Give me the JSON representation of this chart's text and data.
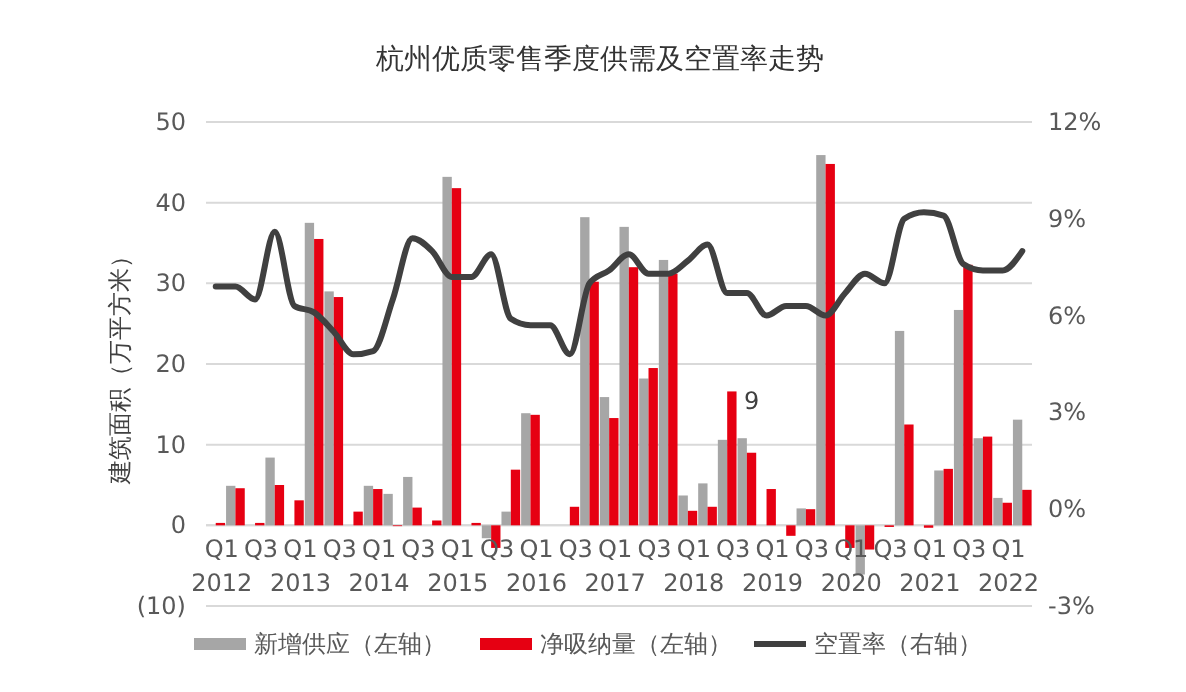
{
  "chart_data": {
    "type": "bar",
    "title": "杭州优质零售季度供需及空置率走势",
    "ylabel": "建筑面积（万平方米）",
    "categories": [
      "Q1\n2012",
      null,
      "Q3",
      null,
      "Q1\n2013",
      null,
      "Q3",
      null,
      "Q1\n2014",
      null,
      "Q3",
      null,
      "Q1\n2015",
      null,
      "Q3",
      null,
      "Q1\n2016",
      null,
      "Q3",
      null,
      "Q1\n2017",
      null,
      "Q3",
      null,
      "Q1\n2018",
      null,
      "Q3",
      null,
      "Q1\n2019",
      null,
      "Q3",
      null,
      "Q1\n2020",
      null,
      "Q3",
      null,
      "Q1\n2021",
      null,
      "Q3",
      null,
      "Q1\n2022",
      null
    ],
    "series": [
      {
        "name": "新增供应（左轴）",
        "color": "#a6a6a6",
        "values": [
          0,
          4.9,
          0,
          8.4,
          0,
          37.5,
          29,
          0,
          4.9,
          3.9,
          6,
          0,
          43.2,
          0,
          -1.6,
          1.7,
          13.9,
          0,
          0,
          38.2,
          15.9,
          37,
          18.2,
          32.9,
          3.7,
          5.2,
          10.6,
          10.8,
          null,
          0,
          2.1,
          45.9,
          0,
          -6.1,
          0,
          24.1,
          0,
          6.8,
          26.7,
          10.8,
          3.4,
          13.1
        ]
      },
      {
        "name": "净吸纳量（左轴）",
        "color": "#e60012",
        "values": [
          0.3,
          4.6,
          0.3,
          5,
          3.1,
          35.5,
          28.3,
          1.7,
          4.5,
          -0.1,
          2.2,
          0.6,
          41.8,
          0.3,
          -2.8,
          6.9,
          13.7,
          0,
          2.3,
          30.2,
          13.3,
          32,
          19.5,
          31.2,
          1.8,
          2.3,
          16.6,
          9,
          4.5,
          -1.3,
          2,
          44.8,
          -2.8,
          -3,
          -0.2,
          12.5,
          -0.3,
          7,
          32.3,
          11,
          2.8,
          4.4
        ],
        "value_labels": [
          null,
          null,
          null,
          null,
          null,
          null,
          null,
          null,
          null,
          null,
          null,
          null,
          null,
          null,
          null,
          null,
          null,
          null,
          null,
          null,
          null,
          null,
          null,
          null,
          null,
          null,
          null,
          "9",
          null,
          null,
          null,
          null,
          null,
          null,
          null,
          null,
          null,
          null,
          null,
          null,
          null,
          null
        ]
      },
      {
        "name": "空置率（右轴）",
        "type": "line",
        "axis": "y2",
        "color": "#404040",
        "values": [
          6.9,
          6.9,
          6.5,
          8.6,
          6.3,
          6.1,
          5.5,
          4.8,
          4.9,
          6.5,
          8.4,
          8.0,
          7.2,
          7.2,
          7.9,
          5.9,
          5.7,
          5.7,
          4.8,
          7.0,
          7.4,
          7.9,
          7.3,
          7.3,
          7.7,
          8.2,
          6.7,
          6.7,
          6.0,
          6.3,
          6.3,
          6.0,
          6.7,
          7.3,
          7.0,
          9.0,
          9.2,
          9.1,
          7.6,
          7.4,
          7.4,
          8.0
        ]
      }
    ],
    "ylim": [
      -10,
      50
    ],
    "yticks": [
      {
        "value": -10,
        "label": "(10)"
      },
      0,
      10,
      20,
      30,
      40,
      50
    ],
    "y2lim": [
      -3,
      12
    ],
    "y2ticks": [
      {
        "value": -3,
        "label": "-3%"
      },
      {
        "value": 0,
        "label": "0%"
      },
      {
        "value": 3,
        "label": "3%"
      },
      {
        "value": 6,
        "label": "6%"
      },
      {
        "value": 9,
        "label": "9%"
      },
      {
        "value": 12,
        "label": "12%"
      }
    ],
    "grid": "y",
    "legend": "bottom",
    "line_style": "solid",
    "marker": "none"
  }
}
